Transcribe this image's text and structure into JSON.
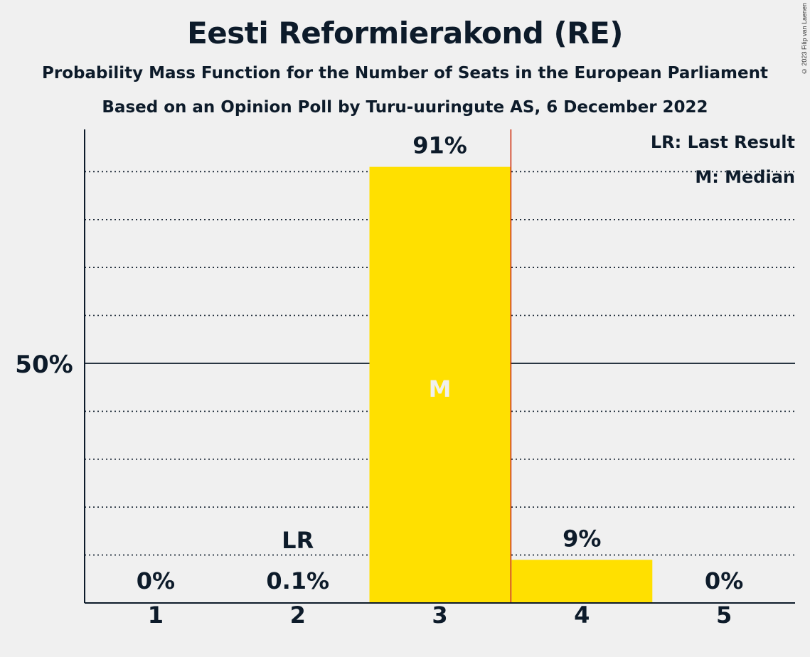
{
  "header": {
    "title": "Eesti Reformierakond (RE)",
    "subtitle1": "Probability Mass Function for the Number of Seats in the European Parliament",
    "subtitle2": "Based on an Opinion Poll by Turu-uuringute AS, 6 December 2022",
    "copyright": "© 2023 Filip van Laenen"
  },
  "legend": {
    "last_result": "LR: Last Result",
    "median": "M: Median"
  },
  "chart_data": {
    "type": "bar",
    "categories": [
      "1",
      "2",
      "3",
      "4",
      "5"
    ],
    "values": [
      0,
      0.1,
      91,
      9,
      0
    ],
    "value_labels": [
      "0%",
      "0.1%",
      "91%",
      "9%",
      "0%"
    ],
    "ylim": [
      0,
      100
    ],
    "y_tick_labels": [
      {
        "value": 50,
        "label": "50%"
      }
    ],
    "y_gridlines": [
      10,
      20,
      30,
      40,
      60,
      70,
      80,
      90
    ],
    "last_result": {
      "category": "2",
      "label": "LR"
    },
    "median": {
      "category": "3",
      "label": "M"
    },
    "majority_line_between": [
      "3",
      "4"
    ],
    "colors": {
      "bar": "#ffe000",
      "median_line": "#cc2200",
      "axis": "#0d1b2a",
      "median_text": "#f0f0f0"
    }
  }
}
